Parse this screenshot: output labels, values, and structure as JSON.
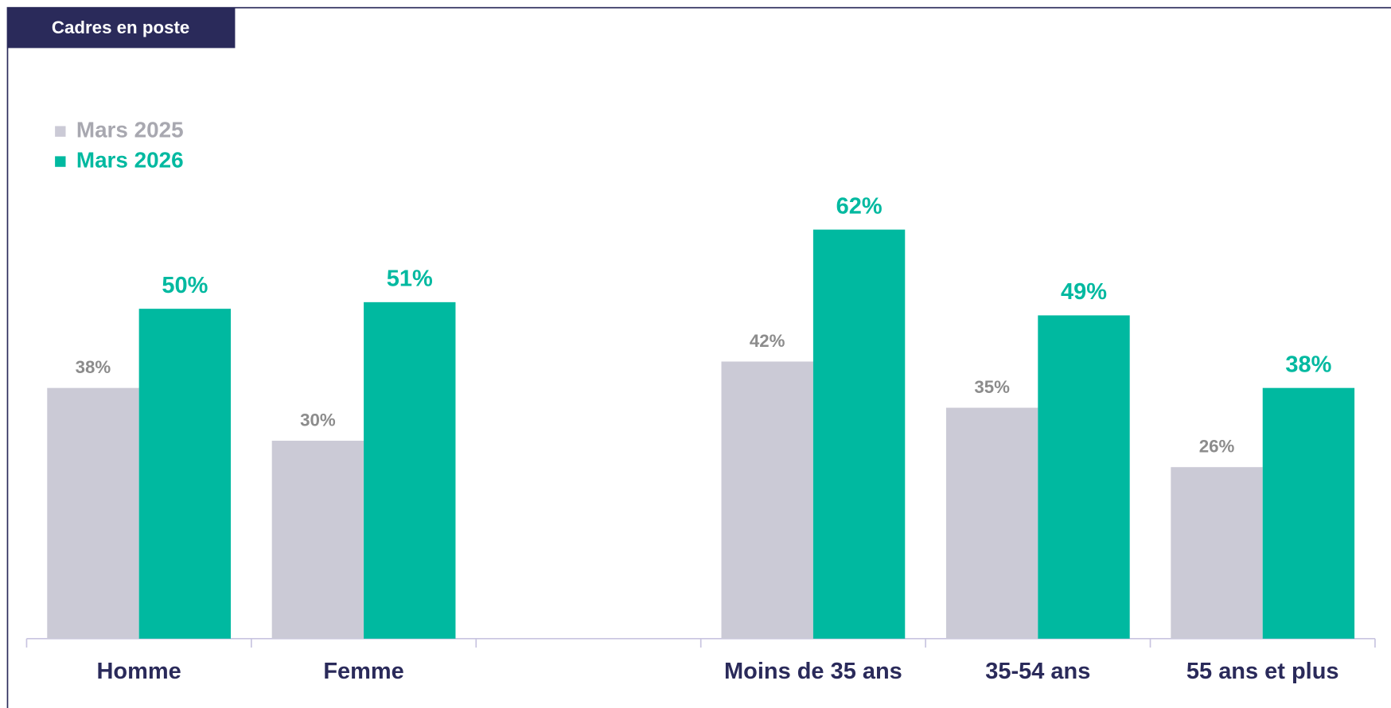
{
  "chart_data": {
    "type": "bar",
    "title": "Cadres en poste",
    "categories": [
      "Homme",
      "Femme",
      null,
      "Moins de 35 ans",
      "35-54 ans",
      "55 ans et plus"
    ],
    "series": [
      {
        "name": "Mars 2025",
        "color": "#cbcad6",
        "label_color": "#8c8c8c",
        "values": [
          38,
          30,
          null,
          42,
          35,
          26
        ],
        "value_labels": [
          "38%",
          "30%",
          null,
          "42%",
          "35%",
          "26%"
        ]
      },
      {
        "name": "Mars 2026",
        "color": "#00b9a0",
        "label_color": "#00b9a0",
        "values": [
          50,
          51,
          null,
          62,
          49,
          38
        ],
        "value_labels": [
          "50%",
          "51%",
          null,
          "62%",
          "49%",
          "38%"
        ]
      }
    ],
    "ylim": [
      0,
      100
    ],
    "legend": "upper left"
  }
}
